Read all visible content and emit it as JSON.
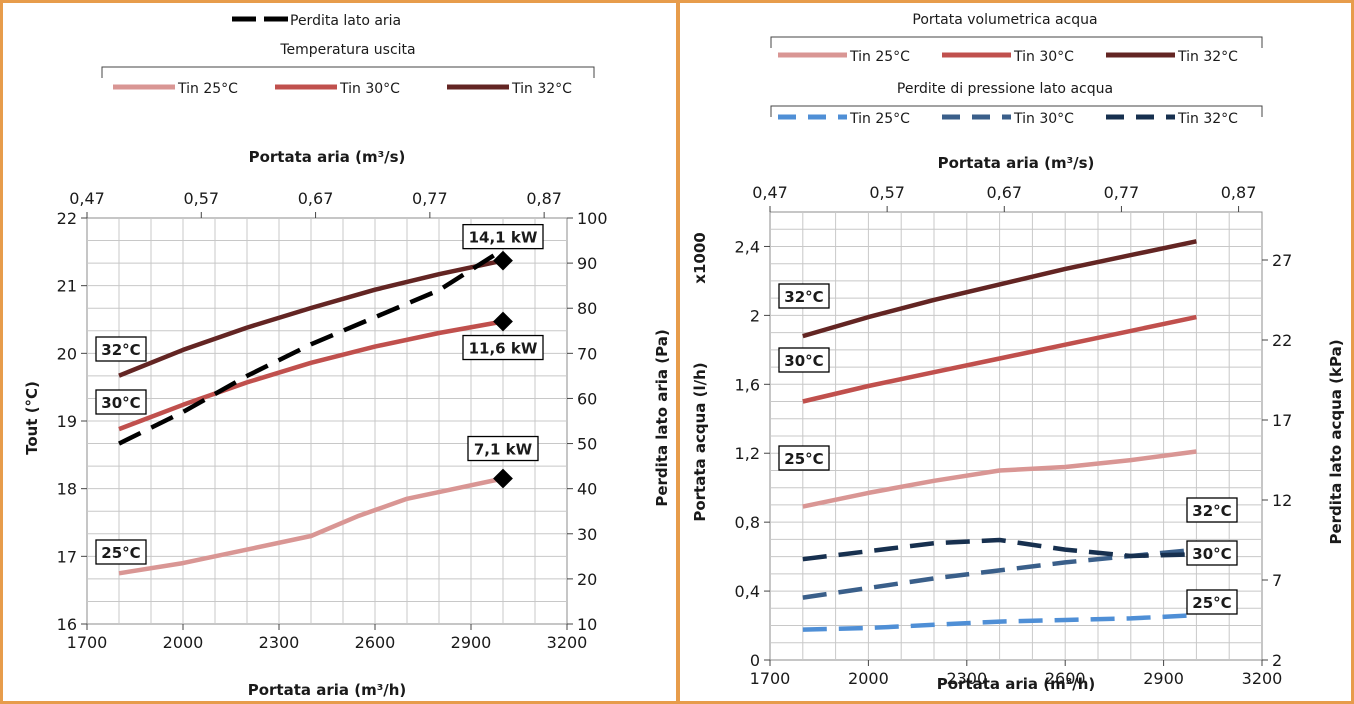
{
  "colors": {
    "border": "#e79c4b",
    "grid": "#c8c8c8",
    "tin25": "#d99694",
    "tin30": "#c0504d",
    "tin32": "#632523",
    "p25": "#4f8fd6",
    "p30": "#3a5f8a",
    "p32": "#17304f",
    "black": "#000000"
  },
  "chart_data": [
    {
      "type": "line",
      "legend_top": {
        "label": "Perdita lato aria"
      },
      "legend_group": {
        "title": "Temperatura uscita",
        "items": [
          "Tin 25°C",
          "Tin 30°C",
          "Tin 32°C"
        ]
      },
      "x_bottom": {
        "label": "Portata aria (m³/h)",
        "range": [
          1700,
          3200
        ],
        "ticks": [
          "1700",
          "2000",
          "2300",
          "2600",
          "2900",
          "3200"
        ]
      },
      "x_top": {
        "label": "Portata aria (m³/s)",
        "range": [
          0.47,
          0.89
        ],
        "ticks": [
          "0,47",
          "0,57",
          "0,67",
          "0,77",
          "0,87"
        ]
      },
      "y_left": {
        "label": "Tout (°C)",
        "range": [
          16,
          22
        ],
        "ticks": [
          "16",
          "17",
          "18",
          "19",
          "20",
          "21",
          "22"
        ]
      },
      "y_right": {
        "label": "Perdita lato aria (Pa)",
        "range": [
          10,
          100
        ],
        "ticks": [
          "10",
          "20",
          "30",
          "40",
          "50",
          "60",
          "70",
          "80",
          "90",
          "100"
        ]
      },
      "series": [
        {
          "name": "Tin 25°C",
          "axis": "left",
          "style": "solid",
          "color": "tin25",
          "x": [
            1800,
            2000,
            2200,
            2400,
            2550,
            2700,
            2850,
            3000
          ],
          "y": [
            16.75,
            16.9,
            17.1,
            17.3,
            17.6,
            17.85,
            18.0,
            18.15
          ]
        },
        {
          "name": "Tin 30°C",
          "axis": "left",
          "style": "solid",
          "color": "tin30",
          "x": [
            1800,
            2000,
            2200,
            2400,
            2600,
            2800,
            3000
          ],
          "y": [
            18.88,
            19.24,
            19.57,
            19.86,
            20.1,
            20.3,
            20.47
          ]
        },
        {
          "name": "Tin 32°C",
          "axis": "left",
          "style": "solid",
          "color": "tin32",
          "x": [
            1800,
            2000,
            2200,
            2400,
            2600,
            2800,
            3000
          ],
          "y": [
            19.67,
            20.05,
            20.38,
            20.67,
            20.94,
            21.17,
            21.37
          ]
        },
        {
          "name": "Perdita lato aria",
          "axis": "right",
          "style": "dashed",
          "color": "black",
          "x": [
            1800,
            2000,
            2200,
            2400,
            2600,
            2800,
            3000
          ],
          "y": [
            50,
            57,
            65,
            72,
            78,
            84,
            93
          ]
        }
      ],
      "markers": [
        {
          "x": 3000,
          "y": 21.37,
          "label": "14,1 kW"
        },
        {
          "x": 3000,
          "y": 20.47,
          "label": "11,6 kW"
        },
        {
          "x": 3000,
          "y": 18.15,
          "label": "7,1 kW"
        }
      ],
      "curve_labels": [
        "32°C",
        "30°C",
        "25°C"
      ]
    },
    {
      "type": "line",
      "legend_group_1": {
        "title": "Portata volumetrica acqua",
        "items": [
          "Tin 25°C",
          "Tin 30°C",
          "Tin 32°C"
        ]
      },
      "legend_group_2": {
        "title": "Perdite di pressione lato acqua",
        "items": [
          "Tin 25°C",
          "Tin 30°C",
          "Tin 32°C"
        ]
      },
      "x_bottom": {
        "label": "Portata aria (m³/h)",
        "range": [
          1700,
          3200
        ],
        "ticks": [
          "1700",
          "2000",
          "2300",
          "2600",
          "2900",
          "3200"
        ]
      },
      "x_top": {
        "label": "Portata aria (m³/s)",
        "range": [
          0.47,
          0.89
        ],
        "ticks": [
          "0,47",
          "0,57",
          "0,67",
          "0,77",
          "0,87"
        ]
      },
      "y_left": {
        "label": "Portata acqua (l/h)",
        "multiplier": "x1000",
        "range": [
          0,
          2.6
        ],
        "ticks": [
          "0",
          "0,4",
          "0,8",
          "1,2",
          "1,6",
          "2",
          "2,4"
        ]
      },
      "y_right": {
        "label": "Perdita lato acqua (kPa)",
        "range": [
          2,
          30
        ],
        "ticks": [
          "2",
          "7",
          "12",
          "17",
          "22",
          "27"
        ]
      },
      "series": [
        {
          "name": "Tin 25°C",
          "axis": "left",
          "style": "solid",
          "color": "tin25",
          "x": [
            1800,
            2000,
            2200,
            2400,
            2600,
            2800,
            3000
          ],
          "y": [
            0.89,
            0.97,
            1.04,
            1.1,
            1.12,
            1.16,
            1.21
          ]
        },
        {
          "name": "Tin 30°C",
          "axis": "left",
          "style": "solid",
          "color": "tin30",
          "x": [
            1800,
            2000,
            2200,
            2400,
            2600,
            2800,
            3000
          ],
          "y": [
            1.5,
            1.59,
            1.67,
            1.75,
            1.83,
            1.91,
            1.99
          ]
        },
        {
          "name": "Tin 32°C",
          "axis": "left",
          "style": "solid",
          "color": "tin32",
          "x": [
            1800,
            2000,
            2200,
            2400,
            2600,
            2800,
            3000
          ],
          "y": [
            1.88,
            1.99,
            2.09,
            2.18,
            2.27,
            2.35,
            2.43
          ]
        },
        {
          "name": "Tin 25°C",
          "axis": "right",
          "style": "dashed",
          "color": "p25",
          "x": [
            1800,
            2000,
            2200,
            2400,
            2600,
            2800,
            3000
          ],
          "y": [
            3.9,
            4.0,
            4.2,
            4.4,
            4.5,
            4.6,
            4.8
          ]
        },
        {
          "name": "Tin 30°C",
          "axis": "right",
          "style": "dashed",
          "color": "p30",
          "x": [
            1800,
            2000,
            2200,
            2400,
            2600,
            2800,
            3000
          ],
          "y": [
            5.9,
            6.5,
            7.1,
            7.6,
            8.1,
            8.5,
            8.9
          ]
        },
        {
          "name": "Tin 32°C",
          "axis": "right",
          "style": "dashed",
          "color": "p32",
          "x": [
            1800,
            2000,
            2200,
            2400,
            2600,
            2800,
            3000
          ],
          "y": [
            8.3,
            8.8,
            9.3,
            9.5,
            8.9,
            8.5,
            8.6
          ]
        }
      ],
      "curve_labels": [
        "32°C",
        "30°C",
        "25°C",
        "32°C",
        "30°C",
        "25°C"
      ]
    }
  ]
}
